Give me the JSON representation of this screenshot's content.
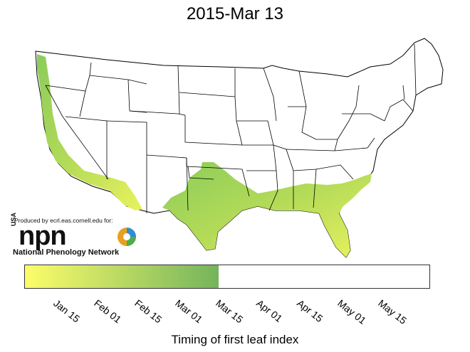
{
  "title": "2015-Mar 13",
  "logo": {
    "produced_by": "Produced by ecrl.eas.cornell.edu for:",
    "usa": "USA",
    "acronym": "npn",
    "network_name": "National Phenology Network"
  },
  "legend": {
    "title": "Timing of first leaf index",
    "tick_labels": [
      "Jan 15",
      "Feb 01",
      "Feb 15",
      "Mar 01",
      "Mar 15",
      "Apr 01",
      "Apr 15",
      "May 01",
      "May 15"
    ],
    "filled_through": "Mar 13",
    "color_start": "#fdfd6a",
    "color_end": "#74b45c"
  },
  "colors": {
    "leafed_out_region": "#b8dc5a",
    "state_borders": "#000000",
    "background": "#ffffff"
  }
}
